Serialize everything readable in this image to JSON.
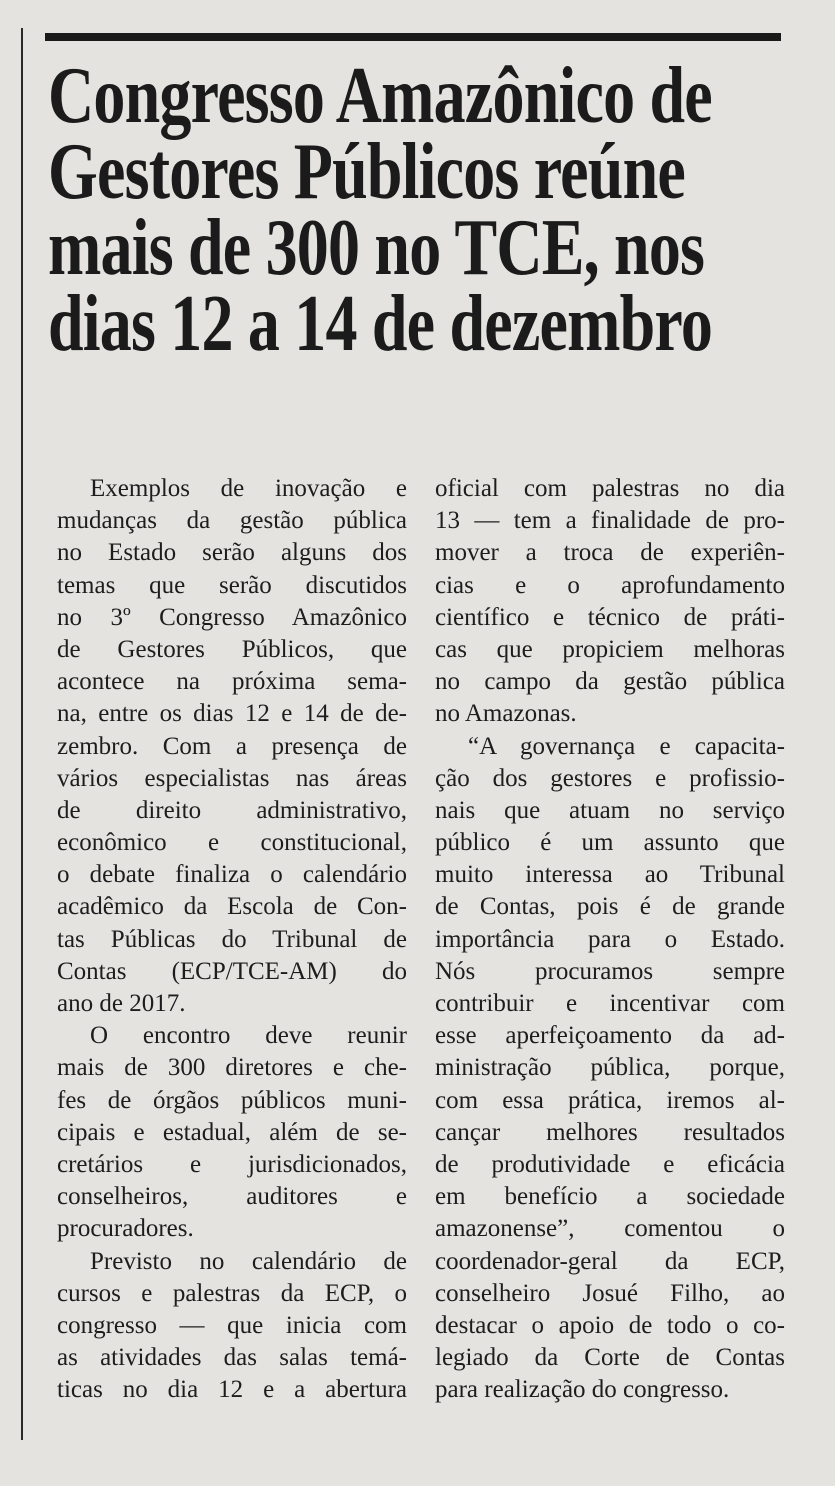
{
  "headline": [
    "Congresso Amazônico de",
    "Gestores Públicos reúne",
    "mais de 300 no TCE, nos",
    "dias 12 a 14 de dezembro"
  ],
  "columns": [
    [
      {
        "t": "Exemplos de inovação e",
        "indent": true
      },
      {
        "t": "mudanças da gestão pública"
      },
      {
        "t": "no Estado serão alguns dos"
      },
      {
        "t": "temas que serão discutidos"
      },
      {
        "t": "no 3º Congresso Amazônico"
      },
      {
        "t": "de Gestores Públicos, que"
      },
      {
        "t": "acontece na próxima sema-"
      },
      {
        "t": "na, entre os dias 12 e 14 de de-"
      },
      {
        "t": "zembro. Com a presença de"
      },
      {
        "t": "vários especialistas nas áreas"
      },
      {
        "t": "de direito administrativo,"
      },
      {
        "t": "econômico e constitucional,"
      },
      {
        "t": "o debate finaliza o calendário"
      },
      {
        "t": "acadêmico da Escola de Con-"
      },
      {
        "t": "tas Públicas do Tribunal de"
      },
      {
        "t": "Contas (ECP/TCE-AM) do"
      },
      {
        "t": "ano de 2017.",
        "end": true
      },
      {
        "t": "O encontro deve reunir",
        "indent": true
      },
      {
        "t": "mais de 300 diretores e che-"
      },
      {
        "t": "fes de órgãos públicos muni-"
      },
      {
        "t": "cipais e estadual, além de se-"
      },
      {
        "t": "cretários e jurisdicionados,"
      },
      {
        "t": "conselheiros, auditores e"
      },
      {
        "t": "procuradores.",
        "end": true
      },
      {
        "t": "Previsto no calendário de",
        "indent": true
      },
      {
        "t": "cursos e palestras da ECP, o"
      },
      {
        "t": "congresso — que inicia com"
      },
      {
        "t": "as atividades das salas temá-"
      },
      {
        "t": "ticas no dia 12 e a abertura"
      }
    ],
    [
      {
        "t": "oficial com palestras no dia"
      },
      {
        "t": "13 — tem a finalidade de pro-"
      },
      {
        "t": "mover a troca de experiên-"
      },
      {
        "t": "cias e o aprofundamento"
      },
      {
        "t": "científico e técnico de práti-"
      },
      {
        "t": "cas que propiciem melhoras"
      },
      {
        "t": "no campo da gestão pública"
      },
      {
        "t": "no Amazonas.",
        "end": true
      },
      {
        "t": "“A governança e capacita-",
        "indent": true
      },
      {
        "t": "ção dos gestores e profissio-"
      },
      {
        "t": "nais que atuam no serviço"
      },
      {
        "t": "público é um assunto que"
      },
      {
        "t": "muito interessa ao Tribunal"
      },
      {
        "t": "de Contas, pois é de grande"
      },
      {
        "t": "importância para o Estado."
      },
      {
        "t": "Nós procuramos sempre"
      },
      {
        "t": "contribuir e incentivar com"
      },
      {
        "t": "esse aperfeiçoamento da ad-"
      },
      {
        "t": "ministração pública, porque,"
      },
      {
        "t": "com essa prática, iremos al-"
      },
      {
        "t": "cançar melhores resultados"
      },
      {
        "t": "de produtividade e eficácia"
      },
      {
        "t": "em benefício a sociedade"
      },
      {
        "t": "amazonense”, comentou o"
      },
      {
        "t": "coordenador-geral da ECP,"
      },
      {
        "t": "conselheiro Josué Filho, ao"
      },
      {
        "t": "destacar o apoio de todo o co-"
      },
      {
        "t": "legiado da Corte de Contas"
      },
      {
        "t": "para realização do congresso.",
        "end": true
      }
    ]
  ]
}
